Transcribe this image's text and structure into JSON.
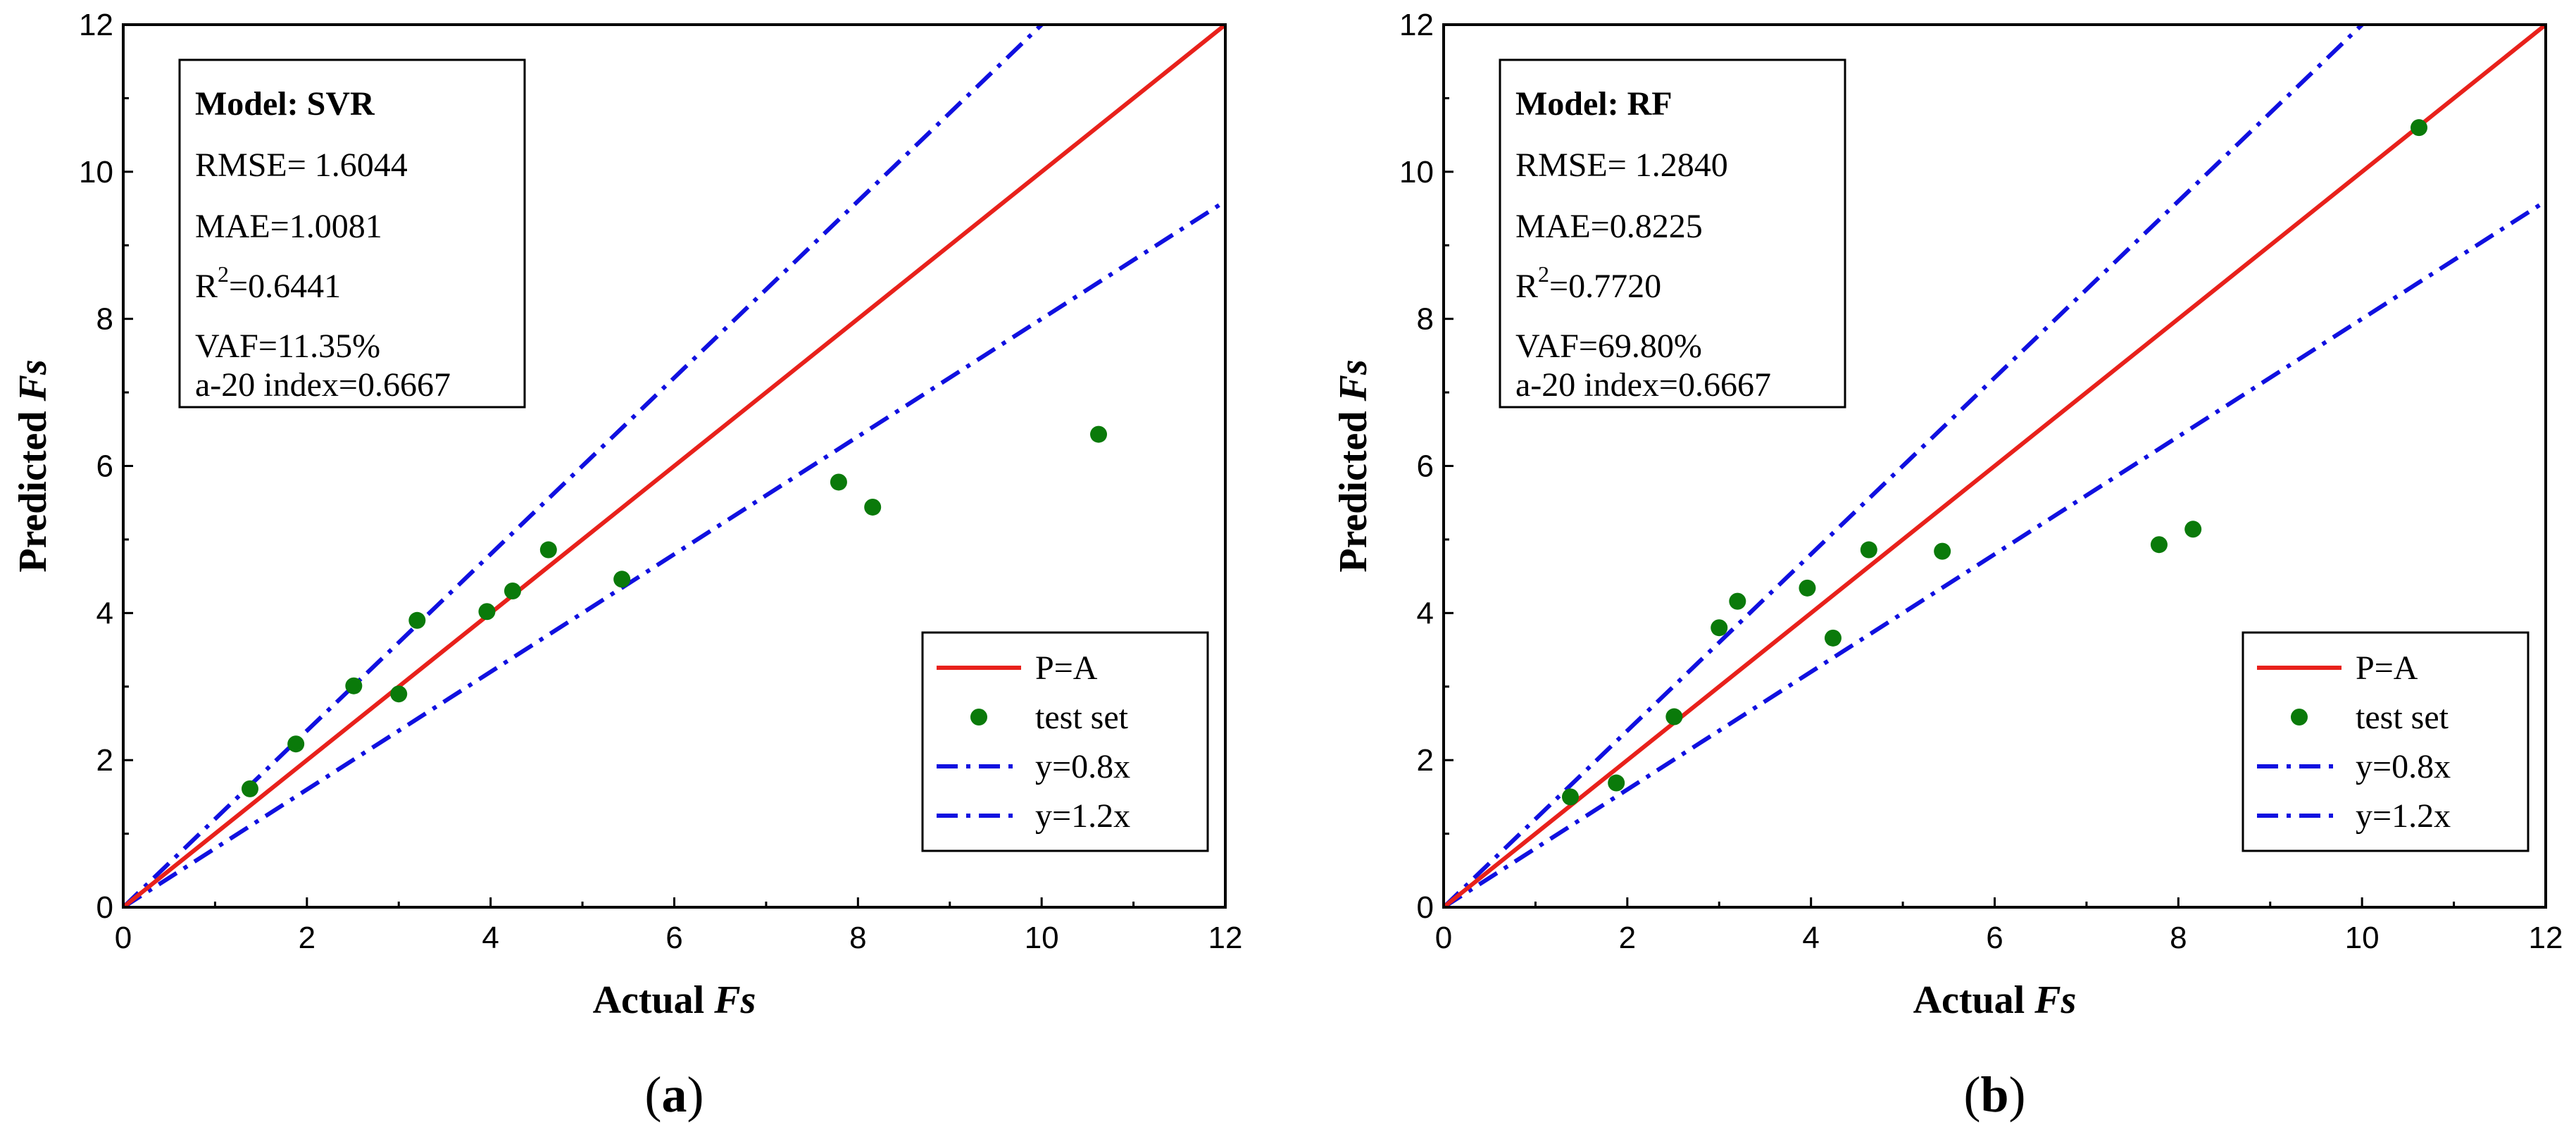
{
  "colors": {
    "ideal": "#e8211b",
    "bounds": "#1010e0",
    "points": "#0a7a0a"
  },
  "chart_data": [
    {
      "type": "scatter",
      "panel": "a",
      "caption": "a",
      "xlabel": {
        "prefix": "Actual",
        "symbol": "Fs"
      },
      "ylabel": {
        "prefix": "Predicted",
        "symbol": "Fs"
      },
      "xlim": [
        0,
        12
      ],
      "ylim": [
        0,
        12
      ],
      "xticks": [
        0,
        2,
        4,
        6,
        8,
        10,
        12
      ],
      "yticks": [
        0,
        2,
        4,
        6,
        8,
        10,
        12
      ],
      "stats": {
        "title": "Model: SVR",
        "rmse": "RMSE= 1.6044",
        "mae": "MAE=1.0081",
        "r2_prefix": "R",
        "r2_sup": "2",
        "r2_value": "=0.6441",
        "vaf": "VAF=11.35%",
        "a20": "a-20 index=0.6667"
      },
      "legend": {
        "ideal": "P=A",
        "points": "test set",
        "lower": "y=0.8x",
        "upper": "y=1.2x"
      },
      "points": [
        {
          "x": 1.38,
          "y": 1.61
        },
        {
          "x": 1.88,
          "y": 2.22
        },
        {
          "x": 2.51,
          "y": 3.01
        },
        {
          "x": 3.0,
          "y": 2.9
        },
        {
          "x": 3.2,
          "y": 3.9
        },
        {
          "x": 3.96,
          "y": 4.02
        },
        {
          "x": 4.24,
          "y": 4.3
        },
        {
          "x": 4.63,
          "y": 4.86
        },
        {
          "x": 5.43,
          "y": 4.46
        },
        {
          "x": 7.79,
          "y": 5.78
        },
        {
          "x": 8.16,
          "y": 5.44
        },
        {
          "x": 10.62,
          "y": 6.43
        }
      ]
    },
    {
      "type": "scatter",
      "panel": "b",
      "caption": "b",
      "xlabel": {
        "prefix": "Actual",
        "symbol": "Fs"
      },
      "ylabel": {
        "prefix": "Predicted",
        "symbol": "Fs"
      },
      "xlim": [
        0,
        12
      ],
      "ylim": [
        0,
        12
      ],
      "xticks": [
        0,
        2,
        4,
        6,
        8,
        10,
        12
      ],
      "yticks": [
        0,
        2,
        4,
        6,
        8,
        10,
        12
      ],
      "stats": {
        "title": "Model: RF",
        "rmse": "RMSE= 1.2840",
        "mae": "MAE=0.8225",
        "r2_prefix": "R",
        "r2_sup": "2",
        "r2_value": "=0.7720",
        "vaf": "VAF=69.80%",
        "a20": "a-20 index=0.6667"
      },
      "legend": {
        "ideal": "P=A",
        "points": "test set",
        "lower": "y=0.8x",
        "upper": "y=1.2x"
      },
      "points": [
        {
          "x": 1.38,
          "y": 1.5
        },
        {
          "x": 1.88,
          "y": 1.69
        },
        {
          "x": 2.51,
          "y": 2.59
        },
        {
          "x": 3.0,
          "y": 3.8
        },
        {
          "x": 3.2,
          "y": 4.16
        },
        {
          "x": 3.96,
          "y": 4.34
        },
        {
          "x": 4.24,
          "y": 3.66
        },
        {
          "x": 4.63,
          "y": 4.86
        },
        {
          "x": 5.43,
          "y": 4.84
        },
        {
          "x": 7.79,
          "y": 4.93
        },
        {
          "x": 8.16,
          "y": 5.14
        },
        {
          "x": 10.62,
          "y": 10.6
        }
      ]
    }
  ]
}
